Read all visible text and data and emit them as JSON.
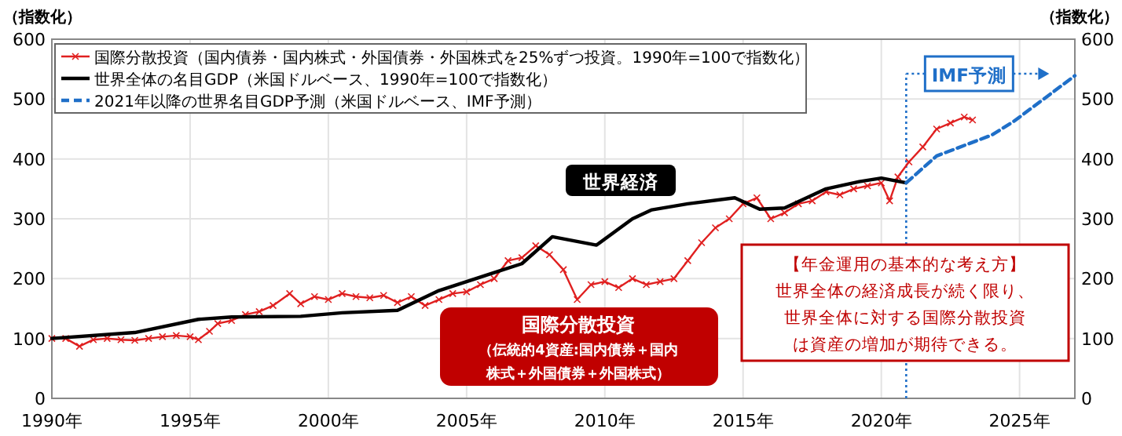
{
  "chart_data": {
    "type": "line",
    "ylabel": "（指数化）",
    "y2label": "（指数化）",
    "xlim": [
      1990,
      2027
    ],
    "xticks": [
      {
        "value": 1990,
        "label": "1990年"
      },
      {
        "value": 1995,
        "label": "1995年"
      },
      {
        "value": 2000,
        "label": "2000年"
      },
      {
        "value": 2005,
        "label": "2005年"
      },
      {
        "value": 2010,
        "label": "2010年"
      },
      {
        "value": 2015,
        "label": "2015年"
      },
      {
        "value": 2020,
        "label": "2020年"
      },
      {
        "value": 2025,
        "label": "2025年"
      }
    ],
    "ylim": [
      0,
      600
    ],
    "yticks": [
      0,
      100,
      200,
      300,
      400,
      500,
      600
    ],
    "y2lim": [
      0,
      600
    ],
    "y2ticks": [
      0,
      100,
      200,
      300,
      400,
      500,
      600
    ],
    "grid": true,
    "legend": "top left",
    "series": [
      {
        "name": "国際分散投資（国内債券・国内株式・外国債券・外国株式を25%ずつ投資。1990年=100で指数化）",
        "color": "#e02020",
        "marker": "cross",
        "line_style": "solid",
        "x": [
          1990,
          1990.5,
          1991,
          1991.5,
          1992,
          1992.5,
          1993,
          1993.5,
          1994,
          1994.5,
          1995,
          1995.3,
          1995.7,
          1996,
          1996.5,
          1997,
          1997.5,
          1998,
          1998.6,
          1999,
          1999.5,
          2000,
          2000.5,
          2001,
          2001.5,
          2002,
          2002.5,
          2003,
          2003.5,
          2004,
          2004.5,
          2005,
          2005.5,
          2006,
          2006.5,
          2007,
          2007.5,
          2008,
          2008.5,
          2009,
          2009.5,
          2010,
          2010.5,
          2011,
          2011.5,
          2012,
          2012.5,
          2013,
          2013.5,
          2014,
          2014.5,
          2015,
          2015.5,
          2016,
          2016.5,
          2017,
          2017.5,
          2018,
          2018.5,
          2019,
          2019.5,
          2020,
          2020.3,
          2020.6,
          2021,
          2021.5,
          2022,
          2022.5,
          2023,
          2023.3
        ],
        "values": [
          100,
          100,
          87,
          98,
          100,
          98,
          97,
          100,
          103,
          105,
          103,
          98,
          112,
          125,
          130,
          140,
          145,
          155,
          175,
          158,
          170,
          165,
          175,
          170,
          168,
          172,
          160,
          170,
          155,
          165,
          175,
          178,
          190,
          200,
          230,
          235,
          255,
          240,
          215,
          165,
          190,
          195,
          185,
          200,
          190,
          195,
          200,
          230,
          260,
          285,
          300,
          325,
          335,
          300,
          310,
          325,
          330,
          345,
          340,
          350,
          355,
          360,
          330,
          370,
          395,
          420,
          450,
          460,
          470,
          465
        ]
      },
      {
        "name": "世界全体の名目GDP（米国ドルベース、1990年=100で指数化）",
        "color": "#000000",
        "line_style": "solid",
        "x": [
          1990,
          1993,
          1995.3,
          1996.5,
          1999,
          2000.5,
          2002.5,
          2004,
          2006,
          2007,
          2008.1,
          2009.7,
          2011,
          2011.7,
          2013,
          2014.7,
          2015.6,
          2016.5,
          2018,
          2019.2,
          2020,
          2020.9
        ],
        "values": [
          100,
          110,
          132,
          136,
          137,
          143,
          147,
          180,
          210,
          225,
          270,
          256,
          300,
          315,
          325,
          335,
          316,
          318,
          350,
          362,
          368,
          360
        ]
      },
      {
        "name": "2021年以降の世界名目GDP予測（米国ドルベース、IMF予測）",
        "color": "#1f6fc8",
        "line_style": "dashed",
        "x": [
          2020.9,
          2022,
          2024,
          2024.8,
          2027
        ],
        "values": [
          360,
          405,
          440,
          463,
          539
        ]
      }
    ],
    "ref_lines": [
      {
        "axis": "x",
        "value": 2020.9,
        "label": "IMF予測",
        "color": "#1f6fc8",
        "line_style": "dotted"
      }
    ],
    "annotations": [
      "世界経済",
      "国際分散投資",
      "（伝統的4資産:国内債券＋国内",
      "株式＋外国債券＋外国株式）",
      "【年金運用の基本的な考え方】",
      "世界全体の経済成長が続く限り、",
      "世界全体に対する国際分散投資",
      "は資産の増加が期待できる。"
    ]
  }
}
